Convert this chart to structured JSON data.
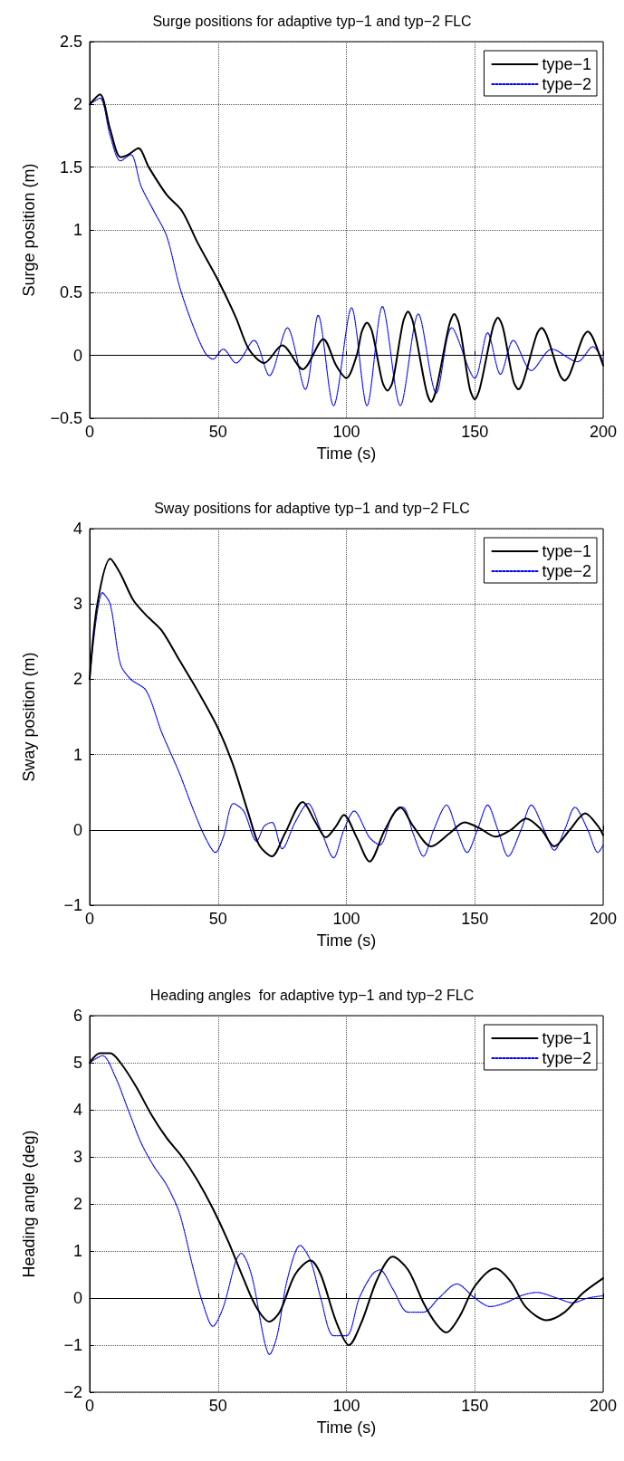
{
  "chart_data": [
    {
      "type": "line",
      "title": "Surge positions for adaptive typ−1 and typ−2 FLC",
      "xlabel": "Time (s)",
      "ylabel": "Surge position (m)",
      "xlim": [
        0,
        200
      ],
      "xticks": [
        0,
        50,
        100,
        150,
        200
      ],
      "ylim": [
        -0.5,
        2.5
      ],
      "yticks": [
        {
          "value": -0.5,
          "label": "−0.5"
        },
        0,
        0.5,
        1,
        1.5,
        2,
        2.5
      ],
      "grid": true,
      "legend": "top right",
      "marker": "none",
      "series": [
        {
          "name": "type−1",
          "color": "#000000",
          "line_style": "solid",
          "x": [
            0,
            4,
            8,
            12,
            15,
            19,
            23,
            30,
            36,
            42,
            50,
            57,
            62,
            68,
            75,
            83,
            91,
            96,
            100,
            104,
            106,
            108,
            110,
            114,
            116,
            118,
            122,
            124,
            126,
            131,
            133,
            135,
            140,
            142,
            144,
            148,
            150,
            152,
            157,
            159,
            161,
            165,
            167,
            169,
            174,
            176,
            178,
            183,
            185,
            187,
            192,
            194,
            196,
            200
          ],
          "values": [
            2.0,
            2.08,
            1.8,
            1.58,
            1.6,
            1.65,
            1.5,
            1.28,
            1.15,
            0.9,
            0.6,
            0.3,
            0.05,
            -0.06,
            0.08,
            -0.11,
            0.13,
            -0.08,
            -0.18,
            0.0,
            0.19,
            0.26,
            0.19,
            -0.21,
            -0.28,
            -0.21,
            0.26,
            0.35,
            0.26,
            -0.27,
            -0.37,
            -0.27,
            0.24,
            0.33,
            0.24,
            -0.26,
            -0.35,
            -0.26,
            0.22,
            0.3,
            0.22,
            -0.2,
            -0.27,
            -0.2,
            0.16,
            0.22,
            0.16,
            -0.15,
            -0.2,
            -0.15,
            0.14,
            0.19,
            0.14,
            -0.08
          ]
        },
        {
          "name": "type−2",
          "color": "#0000ff",
          "line_style": "dotted",
          "x": [
            0,
            4,
            8,
            12,
            16,
            20,
            25,
            30,
            35,
            40,
            45,
            48,
            52,
            57,
            64,
            70,
            77,
            84,
            89,
            95,
            102,
            108,
            114,
            121,
            128,
            135,
            141,
            150,
            155,
            160,
            165,
            172,
            180,
            190,
            196,
            200
          ],
          "values": [
            2.0,
            2.05,
            1.75,
            1.55,
            1.6,
            1.35,
            1.15,
            0.95,
            0.55,
            0.25,
            0.02,
            -0.03,
            0.05,
            -0.06,
            0.12,
            -0.16,
            0.22,
            -0.27,
            0.32,
            -0.4,
            0.38,
            -0.4,
            0.39,
            -0.4,
            0.33,
            -0.3,
            0.22,
            -0.18,
            0.18,
            -0.15,
            0.12,
            -0.12,
            0.05,
            -0.05,
            0.07,
            -0.05
          ]
        }
      ]
    },
    {
      "type": "line",
      "title": "Sway positions for adaptive typ−1 and typ−2 FLC",
      "xlabel": "Time (s)",
      "ylabel": "Sway position (m)",
      "xlim": [
        0,
        200
      ],
      "xticks": [
        0,
        50,
        100,
        150,
        200
      ],
      "ylim": [
        -1,
        4
      ],
      "yticks": [
        {
          "value": -1,
          "label": "−1"
        },
        0,
        1,
        2,
        3,
        4
      ],
      "grid": true,
      "legend": "top right",
      "marker": "none",
      "series": [
        {
          "name": "type−1",
          "color": "#000000",
          "line_style": "solid",
          "x": [
            0,
            3,
            8,
            12,
            17,
            22,
            28,
            35,
            42,
            50,
            56,
            62,
            66,
            71,
            76,
            83,
            88,
            92,
            96,
            99,
            104,
            109,
            115,
            121,
            126,
            133,
            140,
            146,
            152,
            158,
            164,
            170,
            176,
            181,
            187,
            193,
            198,
            200
          ],
          "values": [
            2.0,
            3.0,
            3.6,
            3.4,
            3.05,
            2.85,
            2.65,
            2.25,
            1.85,
            1.35,
            0.85,
            0.2,
            -0.2,
            -0.35,
            -0.05,
            0.37,
            0.1,
            -0.1,
            0.05,
            0.2,
            -0.1,
            -0.42,
            0.0,
            0.3,
            0.05,
            -0.22,
            -0.05,
            0.1,
            0.02,
            -0.09,
            0.0,
            0.15,
            0.0,
            -0.22,
            0.0,
            0.22,
            0.05,
            -0.07
          ]
        },
        {
          "name": "type−2",
          "color": "#0000ff",
          "line_style": "dotted",
          "x": [
            0,
            5,
            8,
            12,
            16,
            22,
            28,
            35,
            40,
            45,
            49,
            52,
            56,
            60,
            65,
            68,
            71,
            75,
            80,
            85,
            90,
            95,
            99,
            103,
            109,
            113,
            118,
            122,
            126,
            130,
            134,
            139,
            143,
            147,
            151,
            155,
            159,
            163,
            168,
            172,
            177,
            181,
            185,
            189,
            194,
            198,
            200
          ],
          "values": [
            2.0,
            3.15,
            3.0,
            2.2,
            2.0,
            1.85,
            1.3,
            0.75,
            0.3,
            -0.1,
            -0.3,
            -0.1,
            0.35,
            0.25,
            -0.15,
            0.05,
            0.1,
            -0.25,
            0.1,
            0.35,
            0.0,
            -0.37,
            0.0,
            0.25,
            -0.1,
            -0.2,
            0.2,
            0.3,
            -0.05,
            -0.35,
            0.0,
            0.33,
            0.0,
            -0.3,
            0.0,
            0.33,
            0.0,
            -0.35,
            0.0,
            0.33,
            0.0,
            -0.27,
            0.0,
            0.3,
            0.0,
            -0.3,
            -0.2
          ]
        }
      ]
    },
    {
      "type": "line",
      "title": "Heading angles  for adaptive typ−1 and typ−2 FLC",
      "xlabel": "Time (s)",
      "ylabel": "Heading angle (deg)",
      "xlim": [
        0,
        200
      ],
      "xticks": [
        0,
        50,
        100,
        150,
        200
      ],
      "ylim": [
        -2,
        6
      ],
      "yticks": [
        {
          "value": -2,
          "label": "−2"
        },
        {
          "value": -1,
          "label": "−1"
        },
        0,
        1,
        2,
        3,
        4,
        5,
        6
      ],
      "grid": true,
      "legend": "top right",
      "marker": "none",
      "series": [
        {
          "name": "type−1",
          "color": "#000000",
          "line_style": "solid",
          "x": [
            0,
            4,
            8,
            12,
            18,
            24,
            30,
            36,
            42,
            48,
            54,
            60,
            65,
            70,
            74,
            80,
            86,
            90,
            96,
            101,
            106,
            112,
            118,
            124,
            130,
            135,
            139,
            144,
            150,
            158,
            164,
            170,
            178,
            185,
            192,
            200
          ],
          "values": [
            5.0,
            5.2,
            5.2,
            5.0,
            4.5,
            3.9,
            3.4,
            3.0,
            2.5,
            1.9,
            1.2,
            0.4,
            -0.2,
            -0.5,
            -0.3,
            0.5,
            0.8,
            0.5,
            -0.5,
            -1.0,
            -0.5,
            0.4,
            0.88,
            0.6,
            -0.1,
            -0.55,
            -0.73,
            -0.4,
            0.25,
            0.63,
            0.35,
            -0.2,
            -0.47,
            -0.3,
            0.1,
            0.42
          ]
        },
        {
          "name": "type−2",
          "color": "#0000ff",
          "line_style": "dotted",
          "x": [
            0,
            5,
            10,
            15,
            20,
            25,
            30,
            35,
            40,
            44,
            48,
            52,
            57,
            59,
            63,
            68,
            70,
            73,
            77,
            82,
            86,
            90,
            95,
            100,
            105,
            110,
            113,
            118,
            124,
            130,
            136,
            143,
            150,
            156,
            162,
            168,
            174,
            182,
            188,
            194,
            200
          ],
          "values": [
            5.0,
            5.15,
            4.7,
            4.0,
            3.3,
            2.8,
            2.4,
            1.8,
            0.7,
            -0.1,
            -0.6,
            -0.2,
            0.8,
            0.95,
            0.5,
            -0.9,
            -1.2,
            -0.8,
            0.4,
            1.12,
            0.8,
            0.0,
            -0.8,
            -0.8,
            0.0,
            0.5,
            0.6,
            0.2,
            -0.3,
            -0.3,
            0.0,
            0.3,
            0.0,
            -0.18,
            -0.1,
            0.05,
            0.12,
            0.0,
            -0.1,
            0.0,
            0.05
          ]
        }
      ]
    }
  ]
}
